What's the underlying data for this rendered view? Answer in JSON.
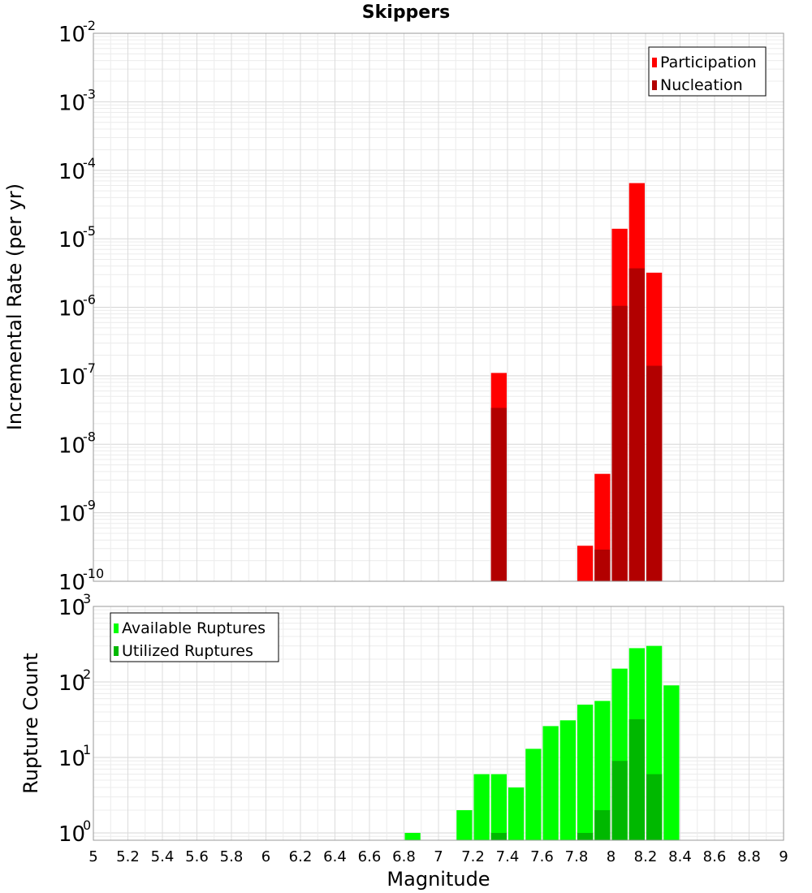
{
  "title": "Skippers",
  "xlabel": "Magnitude",
  "chart_data": [
    {
      "type": "bar",
      "title": "Skippers",
      "xlabel": "Magnitude",
      "ylabel": "Incremental Rate (per yr)",
      "yscale": "log",
      "ylim": [
        1e-10,
        0.01
      ],
      "xlim": [
        5,
        9
      ],
      "xticks": [
        "5",
        "5.2",
        "5.4",
        "5.6",
        "5.8",
        "6",
        "6.2",
        "6.4",
        "6.6",
        "6.8",
        "7",
        "7.2",
        "7.4",
        "7.6",
        "7.8",
        "8",
        "8.2",
        "8.4",
        "8.6",
        "8.8",
        "9"
      ],
      "yticks": [
        {
          "base": "10",
          "exp": "-2"
        },
        {
          "base": "10",
          "exp": "-3"
        },
        {
          "base": "10",
          "exp": "-4"
        },
        {
          "base": "10",
          "exp": "-5"
        },
        {
          "base": "10",
          "exp": "-6"
        },
        {
          "base": "10",
          "exp": "-7"
        },
        {
          "base": "10",
          "exp": "-8"
        },
        {
          "base": "10",
          "exp": "-9"
        },
        {
          "base": "10",
          "exp": "-10"
        }
      ],
      "legend_position": "top-right",
      "grid": true,
      "series": [
        {
          "name": "Participation",
          "color": "#ff0000",
          "x": [
            7.35,
            7.85,
            7.95,
            8.05,
            8.15,
            8.25
          ],
          "values": [
            1.1e-07,
            3.3e-10,
            3.7e-09,
            1.4e-05,
            6.5e-05,
            3.2e-06
          ]
        },
        {
          "name": "Nucleation",
          "color": "#b20000",
          "x": [
            7.35,
            7.95,
            8.05,
            8.15,
            8.25
          ],
          "values": [
            3.4e-08,
            2.9e-10,
            1.05e-06,
            3.7e-06,
            1.4e-07
          ]
        }
      ]
    },
    {
      "type": "bar",
      "ylabel": "Rupture Count",
      "yscale": "log",
      "ylim": [
        0.8,
        1000
      ],
      "xlim": [
        5,
        9
      ],
      "yticks": [
        {
          "base": "10",
          "exp": "3"
        },
        {
          "base": "10",
          "exp": "2"
        },
        {
          "base": "10",
          "exp": "1"
        },
        {
          "base": "10",
          "exp": "0"
        }
      ],
      "legend_position": "top-left",
      "grid": true,
      "series": [
        {
          "name": "Available Ruptures",
          "color": "#00ff00",
          "x": [
            6.85,
            7.15,
            7.25,
            7.35,
            7.45,
            7.55,
            7.65,
            7.75,
            7.85,
            7.95,
            8.05,
            8.15,
            8.25,
            8.35
          ],
          "values": [
            1,
            2,
            6,
            6,
            4,
            13,
            26,
            31,
            50,
            56,
            150,
            280,
            300,
            90
          ]
        },
        {
          "name": "Utilized Ruptures",
          "color": "#00b800",
          "x": [
            7.35,
            7.85,
            7.95,
            8.05,
            8.15,
            8.25
          ],
          "values": [
            1,
            1,
            2,
            9,
            32,
            6
          ]
        }
      ]
    }
  ]
}
